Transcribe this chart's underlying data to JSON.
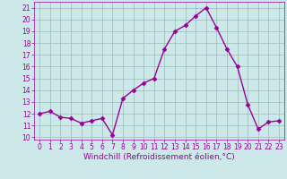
{
  "x": [
    0,
    1,
    2,
    3,
    4,
    5,
    6,
    7,
    8,
    9,
    10,
    11,
    12,
    13,
    14,
    15,
    16,
    17,
    18,
    19,
    20,
    21,
    22,
    23
  ],
  "y": [
    12,
    12.2,
    11.7,
    11.6,
    11.2,
    11.4,
    11.6,
    10.2,
    13.3,
    14.0,
    14.6,
    15.0,
    17.5,
    19.0,
    19.5,
    20.3,
    21.0,
    19.3,
    17.5,
    16.0,
    12.8,
    10.7,
    11.3,
    11.4
  ],
  "line_color": "#990099",
  "marker": "D",
  "marker_size": 2.5,
  "bg_color": "#cce8e8",
  "grid_color": "#99bbbb",
  "xlabel": "Windchill (Refroidissement éolien,°C)",
  "xlabel_color": "#990099",
  "xlim": [
    -0.5,
    23.5
  ],
  "ylim": [
    9.8,
    21.5
  ],
  "yticks": [
    10,
    11,
    12,
    13,
    14,
    15,
    16,
    17,
    18,
    19,
    20,
    21
  ],
  "xticks": [
    0,
    1,
    2,
    3,
    4,
    5,
    6,
    7,
    8,
    9,
    10,
    11,
    12,
    13,
    14,
    15,
    16,
    17,
    18,
    19,
    20,
    21,
    22,
    23
  ],
  "tick_color": "#990099",
  "tick_fontsize": 5.5,
  "xlabel_fontsize": 6.5,
  "line_width": 1.0
}
